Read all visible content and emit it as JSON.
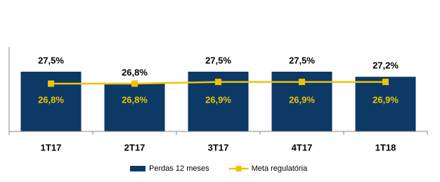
{
  "chart_data": {
    "type": "bar-line",
    "categories": [
      "1T17",
      "2T17",
      "3T17",
      "4T17",
      "1T18"
    ],
    "series": [
      {
        "name": "Perdas 12 meses",
        "type": "bar",
        "color": "#0c3966",
        "label_color": "#000000",
        "values": [
          27.5,
          26.8,
          27.5,
          27.5,
          27.2
        ],
        "value_labels": [
          "27,5%",
          "26,8%",
          "27,5%",
          "27,5%",
          "27,2%"
        ]
      },
      {
        "name": "Meta regulatória",
        "type": "line",
        "color": "#f2c200",
        "label_color": "#f2c200",
        "values": [
          26.8,
          26.8,
          26.9,
          26.9,
          26.9
        ],
        "value_labels": [
          "26,8%",
          "26,8%",
          "26,9%",
          "26,9%",
          "26,9%"
        ]
      }
    ],
    "ylim": [
      24,
      31
    ],
    "grid": false,
    "legend": "bottom"
  }
}
